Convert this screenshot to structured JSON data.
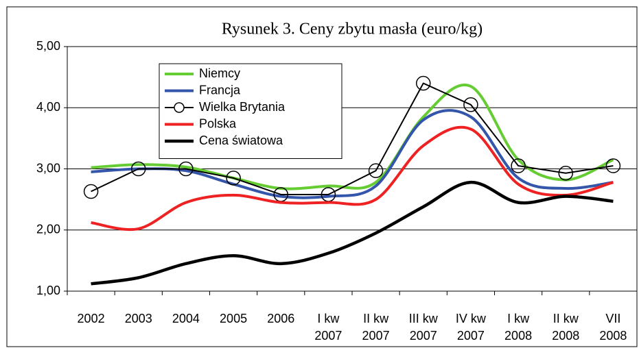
{
  "chart_data": {
    "type": "line",
    "title": "Rysunek 3. Ceny zbytu masła (euro/kg)",
    "categories": [
      [
        "2002"
      ],
      [
        "2003"
      ],
      [
        "2004"
      ],
      [
        "2005"
      ],
      [
        "2006"
      ],
      [
        "I kw",
        "2007"
      ],
      [
        "II kw",
        "2007"
      ],
      [
        "III kw",
        "2007"
      ],
      [
        "IV kw",
        "2007"
      ],
      [
        "I kw",
        "2008"
      ],
      [
        "II kw",
        "2008"
      ],
      [
        "VII",
        "2008"
      ]
    ],
    "series": [
      {
        "name": "Niemcy",
        "color": "#66cc33",
        "width": 4,
        "smooth": true,
        "values": [
          3.02,
          3.07,
          3.03,
          2.85,
          2.68,
          2.72,
          2.78,
          3.85,
          4.35,
          3.15,
          2.82,
          3.15
        ]
      },
      {
        "name": "Francja",
        "color": "#3355aa",
        "width": 4,
        "smooth": true,
        "values": [
          2.95,
          3.0,
          2.97,
          2.75,
          2.55,
          2.55,
          2.72,
          3.8,
          3.85,
          2.85,
          2.68,
          2.78
        ]
      },
      {
        "name": "Wielka Brytania",
        "color": "#000000",
        "width": 2,
        "smooth": false,
        "marker": "circle",
        "values": [
          2.63,
          3.0,
          3.0,
          2.85,
          2.58,
          2.58,
          2.97,
          4.4,
          4.05,
          3.05,
          2.93,
          3.05
        ]
      },
      {
        "name": "Polska",
        "color": "#ee2222",
        "width": 4,
        "smooth": true,
        "values": [
          2.12,
          2.02,
          2.45,
          2.57,
          2.45,
          2.45,
          2.5,
          3.38,
          3.65,
          2.75,
          2.57,
          2.78
        ]
      },
      {
        "name": "Cena światowa",
        "color": "#000000",
        "width": 4.5,
        "smooth": true,
        "values": [
          1.12,
          1.22,
          1.45,
          1.58,
          1.45,
          1.62,
          1.95,
          2.38,
          2.78,
          2.45,
          2.55,
          2.47
        ]
      }
    ],
    "ylim": [
      1,
      5
    ],
    "yticks": [
      {
        "value": 1,
        "label": "1,00"
      },
      {
        "value": 2,
        "label": "2,00"
      },
      {
        "value": 3,
        "label": "3,00"
      },
      {
        "value": 4,
        "label": "4,00"
      },
      {
        "value": 5,
        "label": "5,00"
      }
    ],
    "grid": true,
    "legend": "upper left"
  }
}
